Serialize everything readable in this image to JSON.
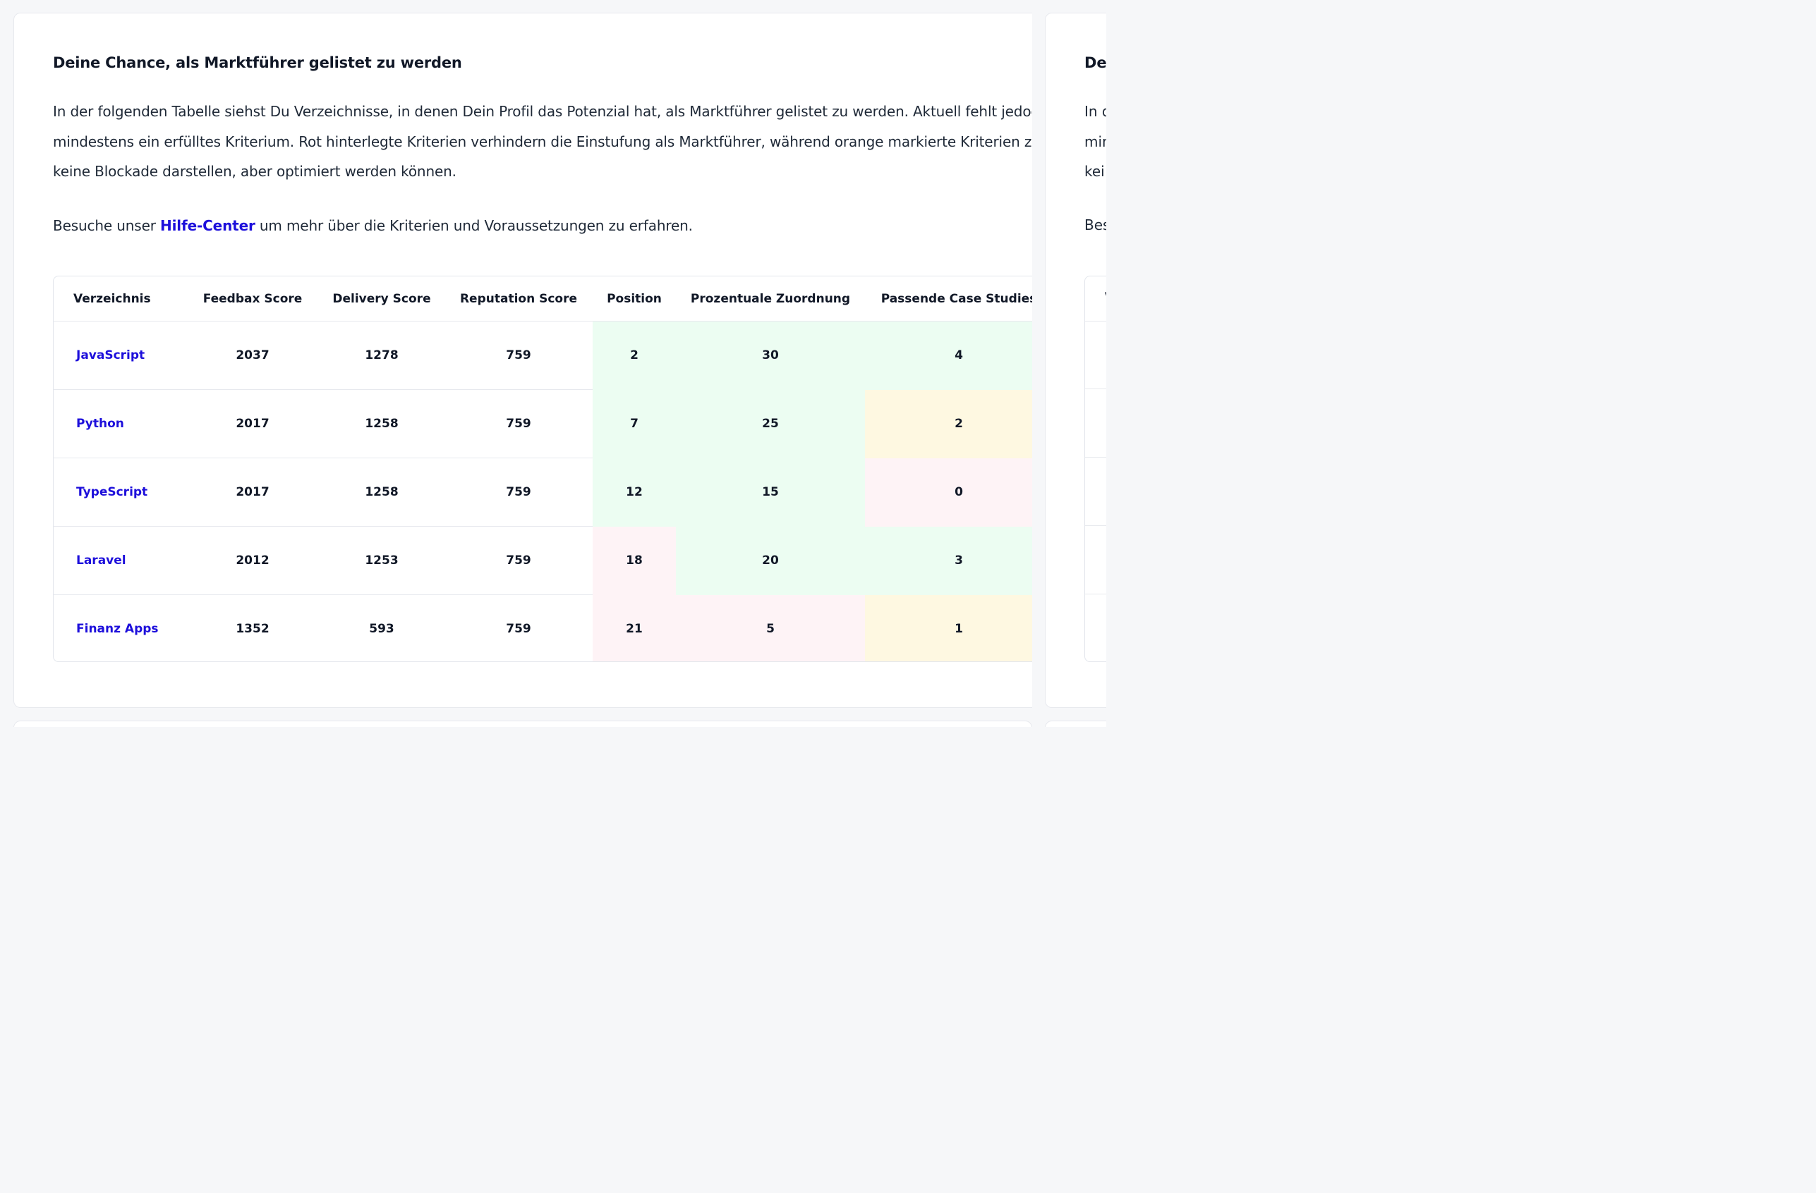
{
  "main_card": {
    "title": "Deine Chance, als Marktführer gelistet zu werden",
    "intro_lines": [
      "In der folgenden Tabelle siehst Du Verzeichnisse, in denen Dein Profil das Potenzial hat, als Marktführer gelistet zu werden. Aktuell fehlt jedoch",
      "mindestens ein erfülltes Kriterium. Rot hinterlegte Kriterien verhindern die Einstufung als Marktführer, während orange markierte Kriterien zwar",
      "keine Blockade darstellen, aber optimiert werden können."
    ],
    "help_prefix": "Besuche unser ",
    "help_link": "Hilfe-Center",
    "help_suffix": " um mehr über die Kriterien und Voraussetzungen zu erfahren."
  },
  "table": {
    "headers": [
      "Verzeichnis",
      "Feedbax Score",
      "Delivery Score",
      "Reputation Score",
      "Position",
      "Prozentuale Zuordnung",
      "Passende Case Studies"
    ],
    "rows": [
      {
        "name": "JavaScript",
        "feedbax": "2037",
        "delivery": "1278",
        "reputation": "759",
        "position": "2",
        "zuordnung": "30",
        "case_studies": "4"
      },
      {
        "name": "Python",
        "feedbax": "2017",
        "delivery": "1258",
        "reputation": "759",
        "position": "7",
        "zuordnung": "25",
        "case_studies": "2"
      },
      {
        "name": "TypeScript",
        "feedbax": "2017",
        "delivery": "1258",
        "reputation": "759",
        "position": "12",
        "zuordnung": "15",
        "case_studies": "0"
      },
      {
        "name": "Laravel",
        "feedbax": "2012",
        "delivery": "1253",
        "reputation": "759",
        "position": "18",
        "zuordnung": "20",
        "case_studies": "3"
      },
      {
        "name": "Finanz Apps",
        "feedbax": "1352",
        "delivery": "593",
        "reputation": "759",
        "position": "21",
        "zuordnung": "5",
        "case_studies": "1"
      }
    ],
    "status_colors": {
      "ok": "#ecfdf2",
      "warn": "#fef8e1",
      "bad": "#fef3f6"
    }
  },
  "side_card": {
    "title": "De",
    "intro_lines": [
      "In d",
      "min",
      "kei"
    ],
    "help_text": "Bes",
    "table_header": "V"
  },
  "colors": {
    "link": "#1d0fdb",
    "background": "#f6f7f9"
  }
}
